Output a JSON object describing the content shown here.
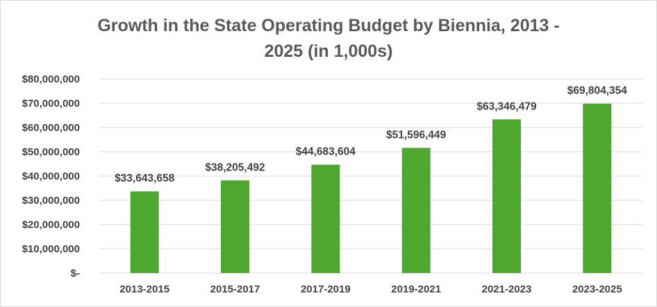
{
  "chart_data": {
    "type": "bar",
    "title_lines": [
      "Growth in the State Operating Budget by Biennia, 2013 -",
      "2025 (in 1,000s)"
    ],
    "categories": [
      "2013-2015",
      "2015-2017",
      "2017-2019",
      "2019-2021",
      "2021-2023",
      "2023-2025"
    ],
    "values": [
      33643658,
      38205492,
      44683604,
      51596449,
      63346479,
      69804354
    ],
    "data_labels": [
      "$33,643,658",
      "$38,205,492",
      "$44,683,604",
      "$51,596,449",
      "$63,346,479",
      "$69,804,354"
    ],
    "y_ticks": [
      0,
      10000000,
      20000000,
      30000000,
      40000000,
      50000000,
      60000000,
      70000000,
      80000000
    ],
    "y_tick_labels": [
      "$-",
      "$10,000,000",
      "$20,000,000",
      "$30,000,000",
      "$40,000,000",
      "$50,000,000",
      "$60,000,000",
      "$70,000,000",
      "$80,000,000"
    ],
    "ylim": [
      0,
      80000000
    ],
    "grid": true,
    "legend": "none",
    "bar_color": "#4ea72e"
  }
}
